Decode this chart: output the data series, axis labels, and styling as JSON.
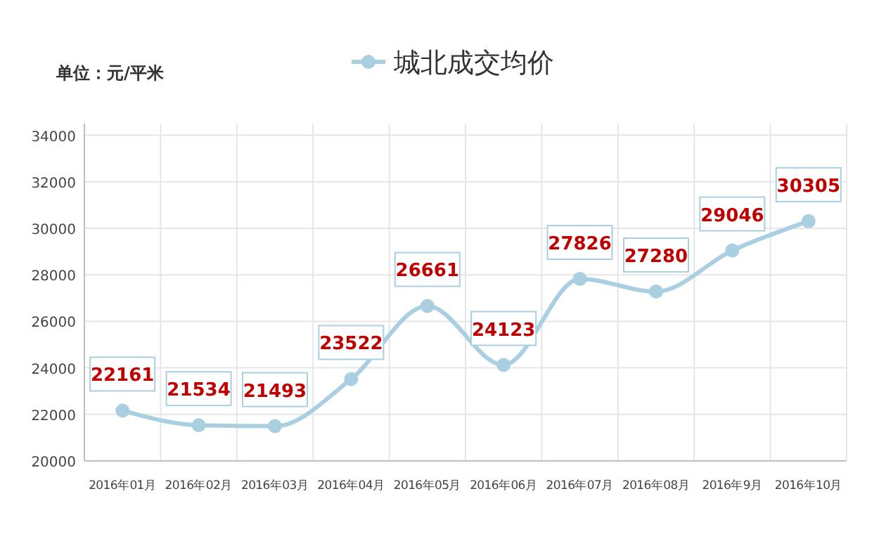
{
  "chart_data": {
    "type": "line",
    "categories": [
      "2016年01月",
      "2016年02月",
      "2016年03月",
      "2016年04月",
      "2016年05月",
      "2016年06月",
      "2016年07月",
      "2016年08月",
      "2016年9月",
      "2016年10月"
    ],
    "series": [
      {
        "name": "城北成交均价",
        "color": "#a9cfe0",
        "values": [
          22161,
          21534,
          21493,
          23522,
          26661,
          24123,
          27826,
          27280,
          29046,
          30305
        ]
      }
    ],
    "ylim": [
      20000,
      34500
    ],
    "yticks": [
      20000,
      22000,
      24000,
      26000,
      28000,
      30000,
      32000,
      34000
    ],
    "grid": true,
    "legend": "top",
    "marker": "circle",
    "line_style": "solid",
    "data_labels": true,
    "annotations": [
      "单位：元/平米"
    ]
  }
}
